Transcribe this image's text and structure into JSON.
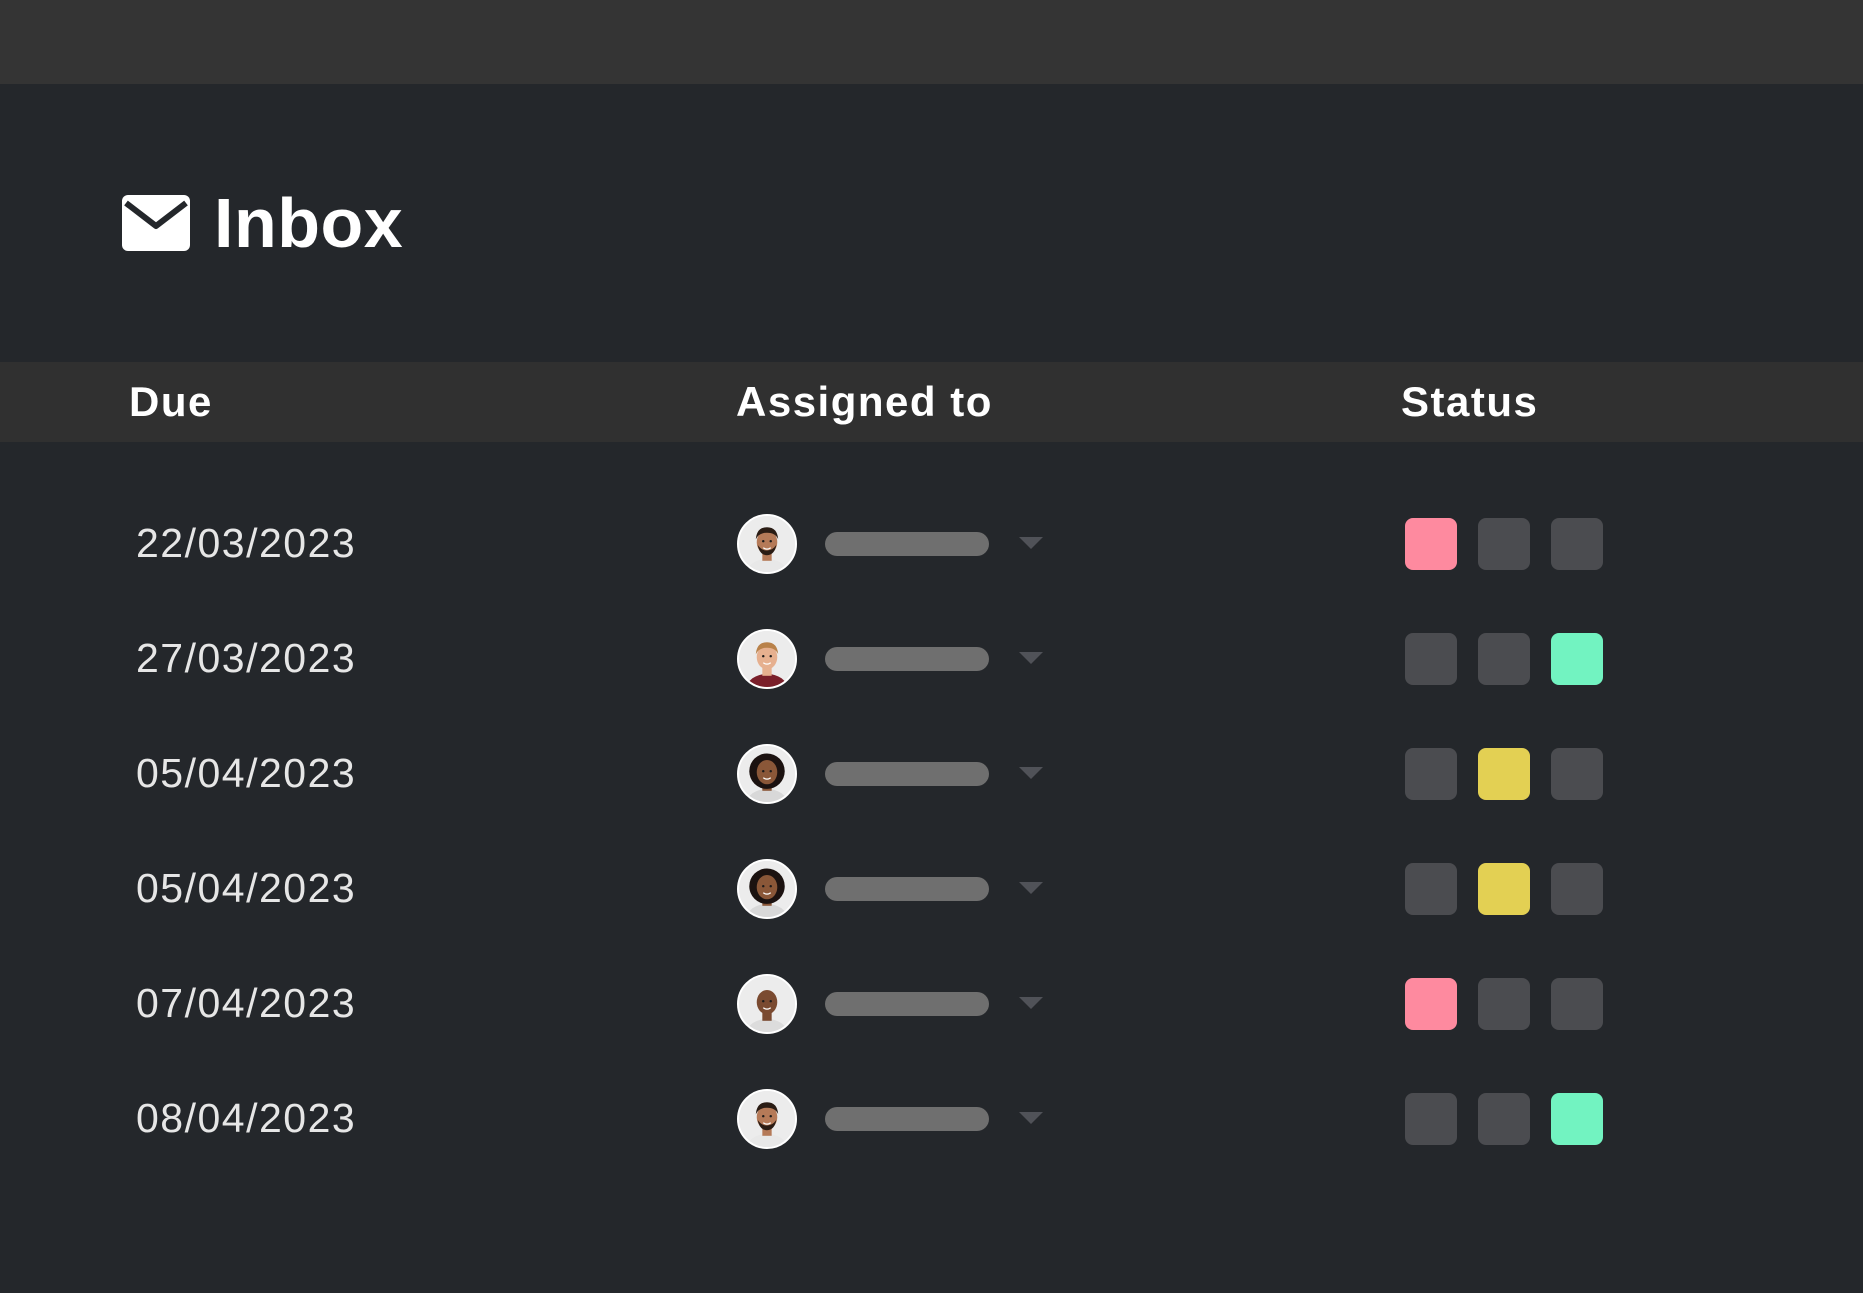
{
  "header": {
    "title": "Inbox",
    "icon": "mail-icon"
  },
  "columns": {
    "due": "Due",
    "assigned": "Assigned to",
    "status": "Status"
  },
  "colors": {
    "background": "#24272b",
    "topbar": "#343434",
    "header_row": "#303030",
    "status_inactive": "#4b4c50",
    "status_pink": "#fe8a9f",
    "status_yellow": "#e3d053",
    "status_green": "#72f3c1",
    "name_placeholder": "#6f6f6f"
  },
  "rows": [
    {
      "due": "22/03/2023",
      "avatar": "person-man-beard",
      "status_active": 0,
      "status_color": "#fe8a9f"
    },
    {
      "due": "27/03/2023",
      "avatar": "person-man-blond",
      "status_active": 2,
      "status_color": "#72f3c1"
    },
    {
      "due": "05/04/2023",
      "avatar": "person-woman-curly",
      "status_active": 1,
      "status_color": "#e3d053"
    },
    {
      "due": "05/04/2023",
      "avatar": "person-woman-curly",
      "status_active": 1,
      "status_color": "#e3d053"
    },
    {
      "due": "07/04/2023",
      "avatar": "person-bald",
      "status_active": 0,
      "status_color": "#fe8a9f"
    },
    {
      "due": "08/04/2023",
      "avatar": "person-man-beard",
      "status_active": 2,
      "status_color": "#72f3c1"
    }
  ]
}
